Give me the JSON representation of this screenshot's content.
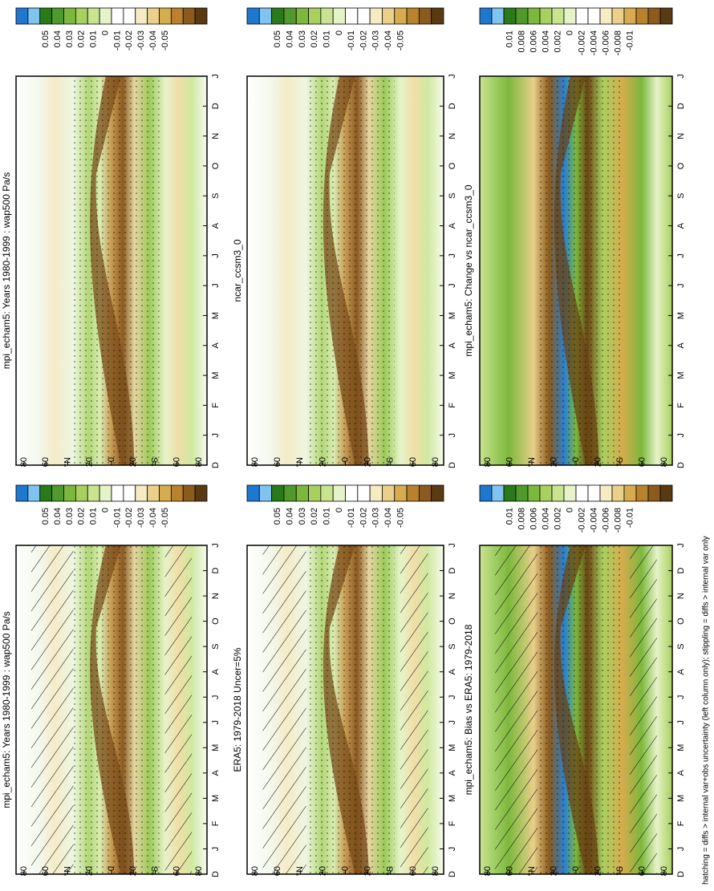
{
  "panels": [
    {
      "title": "mpi_echam5: Years 1980-1999 : wap500 Pa/s",
      "colorbar_labels": [
        "0.05",
        "0.04",
        "0.03",
        "0.02",
        "0.01",
        "0",
        "-0.01",
        "-0.02",
        "-0.03",
        "-0.04",
        "-0.05"
      ]
    },
    {
      "title": "ERA5: 1979-2018 Uncer=5%",
      "colorbar_labels": [
        "0.05",
        "0.04",
        "0.03",
        "0.02",
        "0.01",
        "0",
        "-0.01",
        "-0.02",
        "-0.03",
        "-0.04",
        "-0.05"
      ]
    },
    {
      "title": "mpi_echam5: Bias vs ERA5: 1979-2018",
      "colorbar_labels": [
        "0.01",
        "0.008",
        "0.006",
        "0.004",
        "0.002",
        "0",
        "-0.002",
        "-0.004",
        "-0.006",
        "-0.008",
        "-0.01"
      ]
    },
    {
      "title": "mpi_echam5: Years 1980-1999 : wap500 Pa/s",
      "colorbar_labels": [
        "0.05",
        "0.04",
        "0.03",
        "0.02",
        "0.01",
        "0",
        "-0.01",
        "-0.02",
        "-0.03",
        "-0.04",
        "-0.05"
      ]
    },
    {
      "title": "ncar_ccsm3_0",
      "colorbar_labels": [
        "0.05",
        "0.04",
        "0.03",
        "0.02",
        "0.01",
        "0",
        "-0.01",
        "-0.02",
        "-0.03",
        "-0.04",
        "-0.05"
      ]
    },
    {
      "title": "mpi_echam5: Change vs ncar_ccsm3_0",
      "colorbar_labels": [
        "0.01",
        "0.008",
        "0.006",
        "0.004",
        "0.002",
        "0",
        "-0.002",
        "-0.004",
        "-0.006",
        "-0.008",
        "-0.01"
      ]
    }
  ],
  "months": [
    "D",
    "J",
    "F",
    "M",
    "A",
    "M",
    "J",
    "J",
    "A",
    "S",
    "O",
    "N",
    "D",
    "J"
  ],
  "latitudes": [
    "80",
    "60",
    "°N",
    "20",
    "0",
    "20",
    "°S",
    "60",
    "80"
  ],
  "footer": "hatching = diffs > internal var+obs uncertainty (left column only); stippling = diffs > internal var only"
}
